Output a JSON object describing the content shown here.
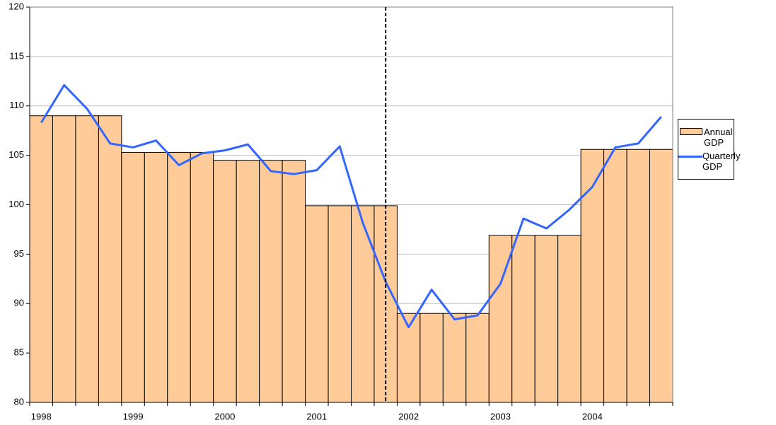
{
  "chart_data": {
    "type": "combo",
    "categories": [
      "1998",
      null,
      null,
      null,
      "1999",
      null,
      null,
      null,
      "2000",
      null,
      null,
      null,
      "2001",
      null,
      null,
      null,
      "2002",
      null,
      null,
      null,
      "2003",
      null,
      null,
      null,
      "2004",
      null,
      null,
      null
    ],
    "series": [
      {
        "name": "Annual GDP",
        "type": "bar",
        "color": "#FFCC99",
        "values": [
          109.0,
          109.0,
          109.0,
          109.0,
          105.3,
          105.3,
          105.3,
          105.3,
          104.5,
          104.5,
          104.5,
          104.5,
          99.9,
          99.9,
          99.9,
          99.9,
          89.0,
          89.0,
          89.0,
          89.0,
          96.9,
          96.9,
          96.9,
          96.9,
          105.6,
          105.6,
          105.6,
          105.6
        ]
      },
      {
        "name": "Quarterly GDP",
        "type": "line",
        "color": "#3366FF",
        "values": [
          108.3,
          112.1,
          109.7,
          106.2,
          105.8,
          106.5,
          104.0,
          105.2,
          105.5,
          106.1,
          103.4,
          103.1,
          103.5,
          105.9,
          98.2,
          92.2,
          87.6,
          91.4,
          88.4,
          88.8,
          92.0,
          98.6,
          97.6,
          99.5,
          101.8,
          105.8,
          106.2,
          108.9
        ]
      }
    ],
    "ylim": [
      80,
      120
    ],
    "yticks": [
      80,
      85,
      90,
      95,
      100,
      105,
      110,
      115,
      120
    ],
    "grid": true,
    "reference_line": {
      "category_index": 15,
      "style": "dashed"
    },
    "legend": "right"
  }
}
